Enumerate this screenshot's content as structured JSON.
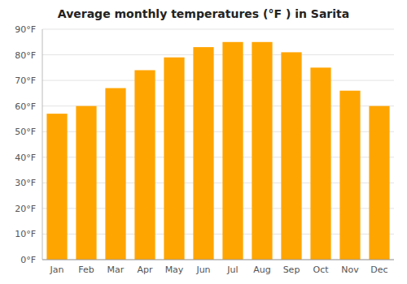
{
  "chart_data": {
    "type": "bar",
    "title": "Average monthly temperatures (°F ) in Sarita",
    "categories": [
      "Jan",
      "Feb",
      "Mar",
      "Apr",
      "May",
      "Jun",
      "Jul",
      "Aug",
      "Sep",
      "Oct",
      "Nov",
      "Dec"
    ],
    "values": [
      57,
      60,
      67,
      74,
      79,
      83,
      85,
      85,
      81,
      75,
      66,
      60
    ],
    "color": "#FFA500",
    "ylim": [
      0,
      90
    ],
    "yticks": [
      {
        "value": 0,
        "label": "0°F"
      },
      {
        "value": 10,
        "label": "10°F"
      },
      {
        "value": 20,
        "label": "20°F"
      },
      {
        "value": 30,
        "label": "30°F"
      },
      {
        "value": 40,
        "label": "40°F"
      },
      {
        "value": 50,
        "label": "50°F"
      },
      {
        "value": 60,
        "label": "60°F"
      },
      {
        "value": 70,
        "label": "70°F"
      },
      {
        "value": 80,
        "label": "80°F"
      },
      {
        "value": 90,
        "label": "90°F"
      }
    ],
    "grid": true
  }
}
